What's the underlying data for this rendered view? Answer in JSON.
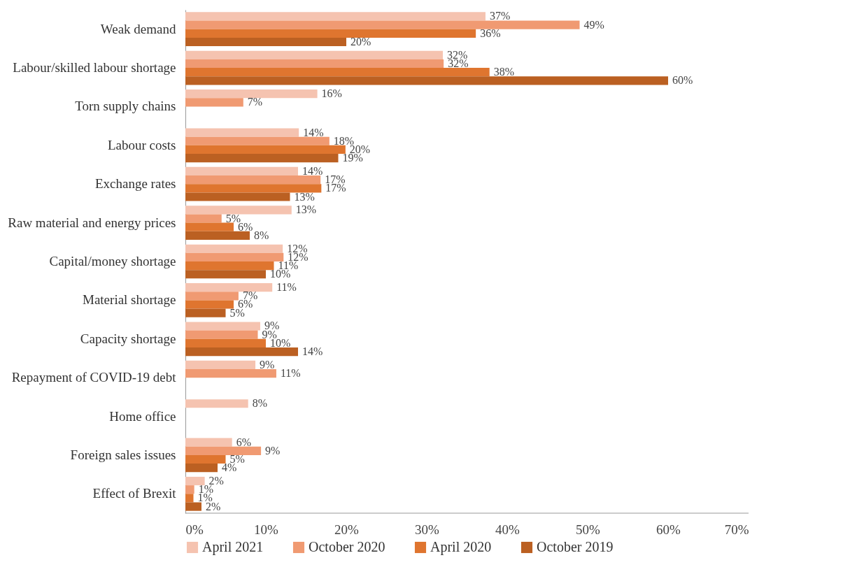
{
  "chart_data": {
    "type": "bar",
    "orientation": "horizontal",
    "categories": [
      "Weak demand",
      "Labour/skilled labour shortage",
      "Torn supply chains",
      "Labour costs",
      "Exchange rates",
      "Raw material and energy prices",
      "Capital/money shortage",
      "Material shortage",
      "Capacity shortage",
      "Repayment of COVID-19 debt",
      "Home office",
      "Foreign sales issues",
      "Effect of Brexit"
    ],
    "series": [
      {
        "name": "April 2021",
        "color": "#f5c3b0",
        "values": [
          37.3,
          32,
          16.4,
          14.1,
          14,
          13.2,
          12.1,
          10.8,
          9.3,
          8.7,
          7.8,
          5.8,
          2.4
        ],
        "value_labels": [
          "37%",
          "32%",
          "16%",
          "14%",
          "14%",
          "13%",
          "12%",
          "11%",
          "9%",
          "9%",
          "8%",
          "6%",
          "2%"
        ]
      },
      {
        "name": "October 2020",
        "color": "#f09a72",
        "values": [
          49,
          32.1,
          7.2,
          17.9,
          16.8,
          4.5,
          12.2,
          6.6,
          9,
          11.3,
          null,
          9.4,
          1.1
        ],
        "value_labels": [
          "49%",
          "32%",
          "7%",
          "18%",
          "17%",
          "5%",
          "12%",
          "7%",
          "9%",
          "11%",
          null,
          "9%",
          "1%"
        ]
      },
      {
        "name": "April 2020",
        "color": "#df752f",
        "values": [
          36.1,
          37.8,
          null,
          19.9,
          16.9,
          6,
          11,
          6,
          10,
          null,
          null,
          5,
          1
        ],
        "value_labels": [
          "36%",
          "38%",
          null,
          "20%",
          "17%",
          "6%",
          "11%",
          "6%",
          "10%",
          null,
          null,
          "5%",
          "1%"
        ]
      },
      {
        "name": "October 2019",
        "color": "#bb6022",
        "values": [
          20,
          60,
          null,
          19,
          13,
          8,
          10,
          5,
          14,
          null,
          null,
          4,
          2
        ],
        "value_labels": [
          "20%",
          "60%",
          null,
          "19%",
          "13%",
          "8%",
          "10%",
          "5%",
          "14%",
          null,
          null,
          "4%",
          "2%"
        ]
      }
    ],
    "xlim": [
      0,
      70
    ],
    "xticks": [
      {
        "value": 0,
        "label": "0%"
      },
      {
        "value": 10,
        "label": "10%"
      },
      {
        "value": 20,
        "label": "20%"
      },
      {
        "value": 30,
        "label": "30%"
      },
      {
        "value": 40,
        "label": "40%"
      },
      {
        "value": 50,
        "label": "50%"
      },
      {
        "value": 60,
        "label": "60%"
      },
      {
        "value": 70,
        "label": "70%"
      }
    ],
    "grid": false,
    "legend": "bottom"
  }
}
